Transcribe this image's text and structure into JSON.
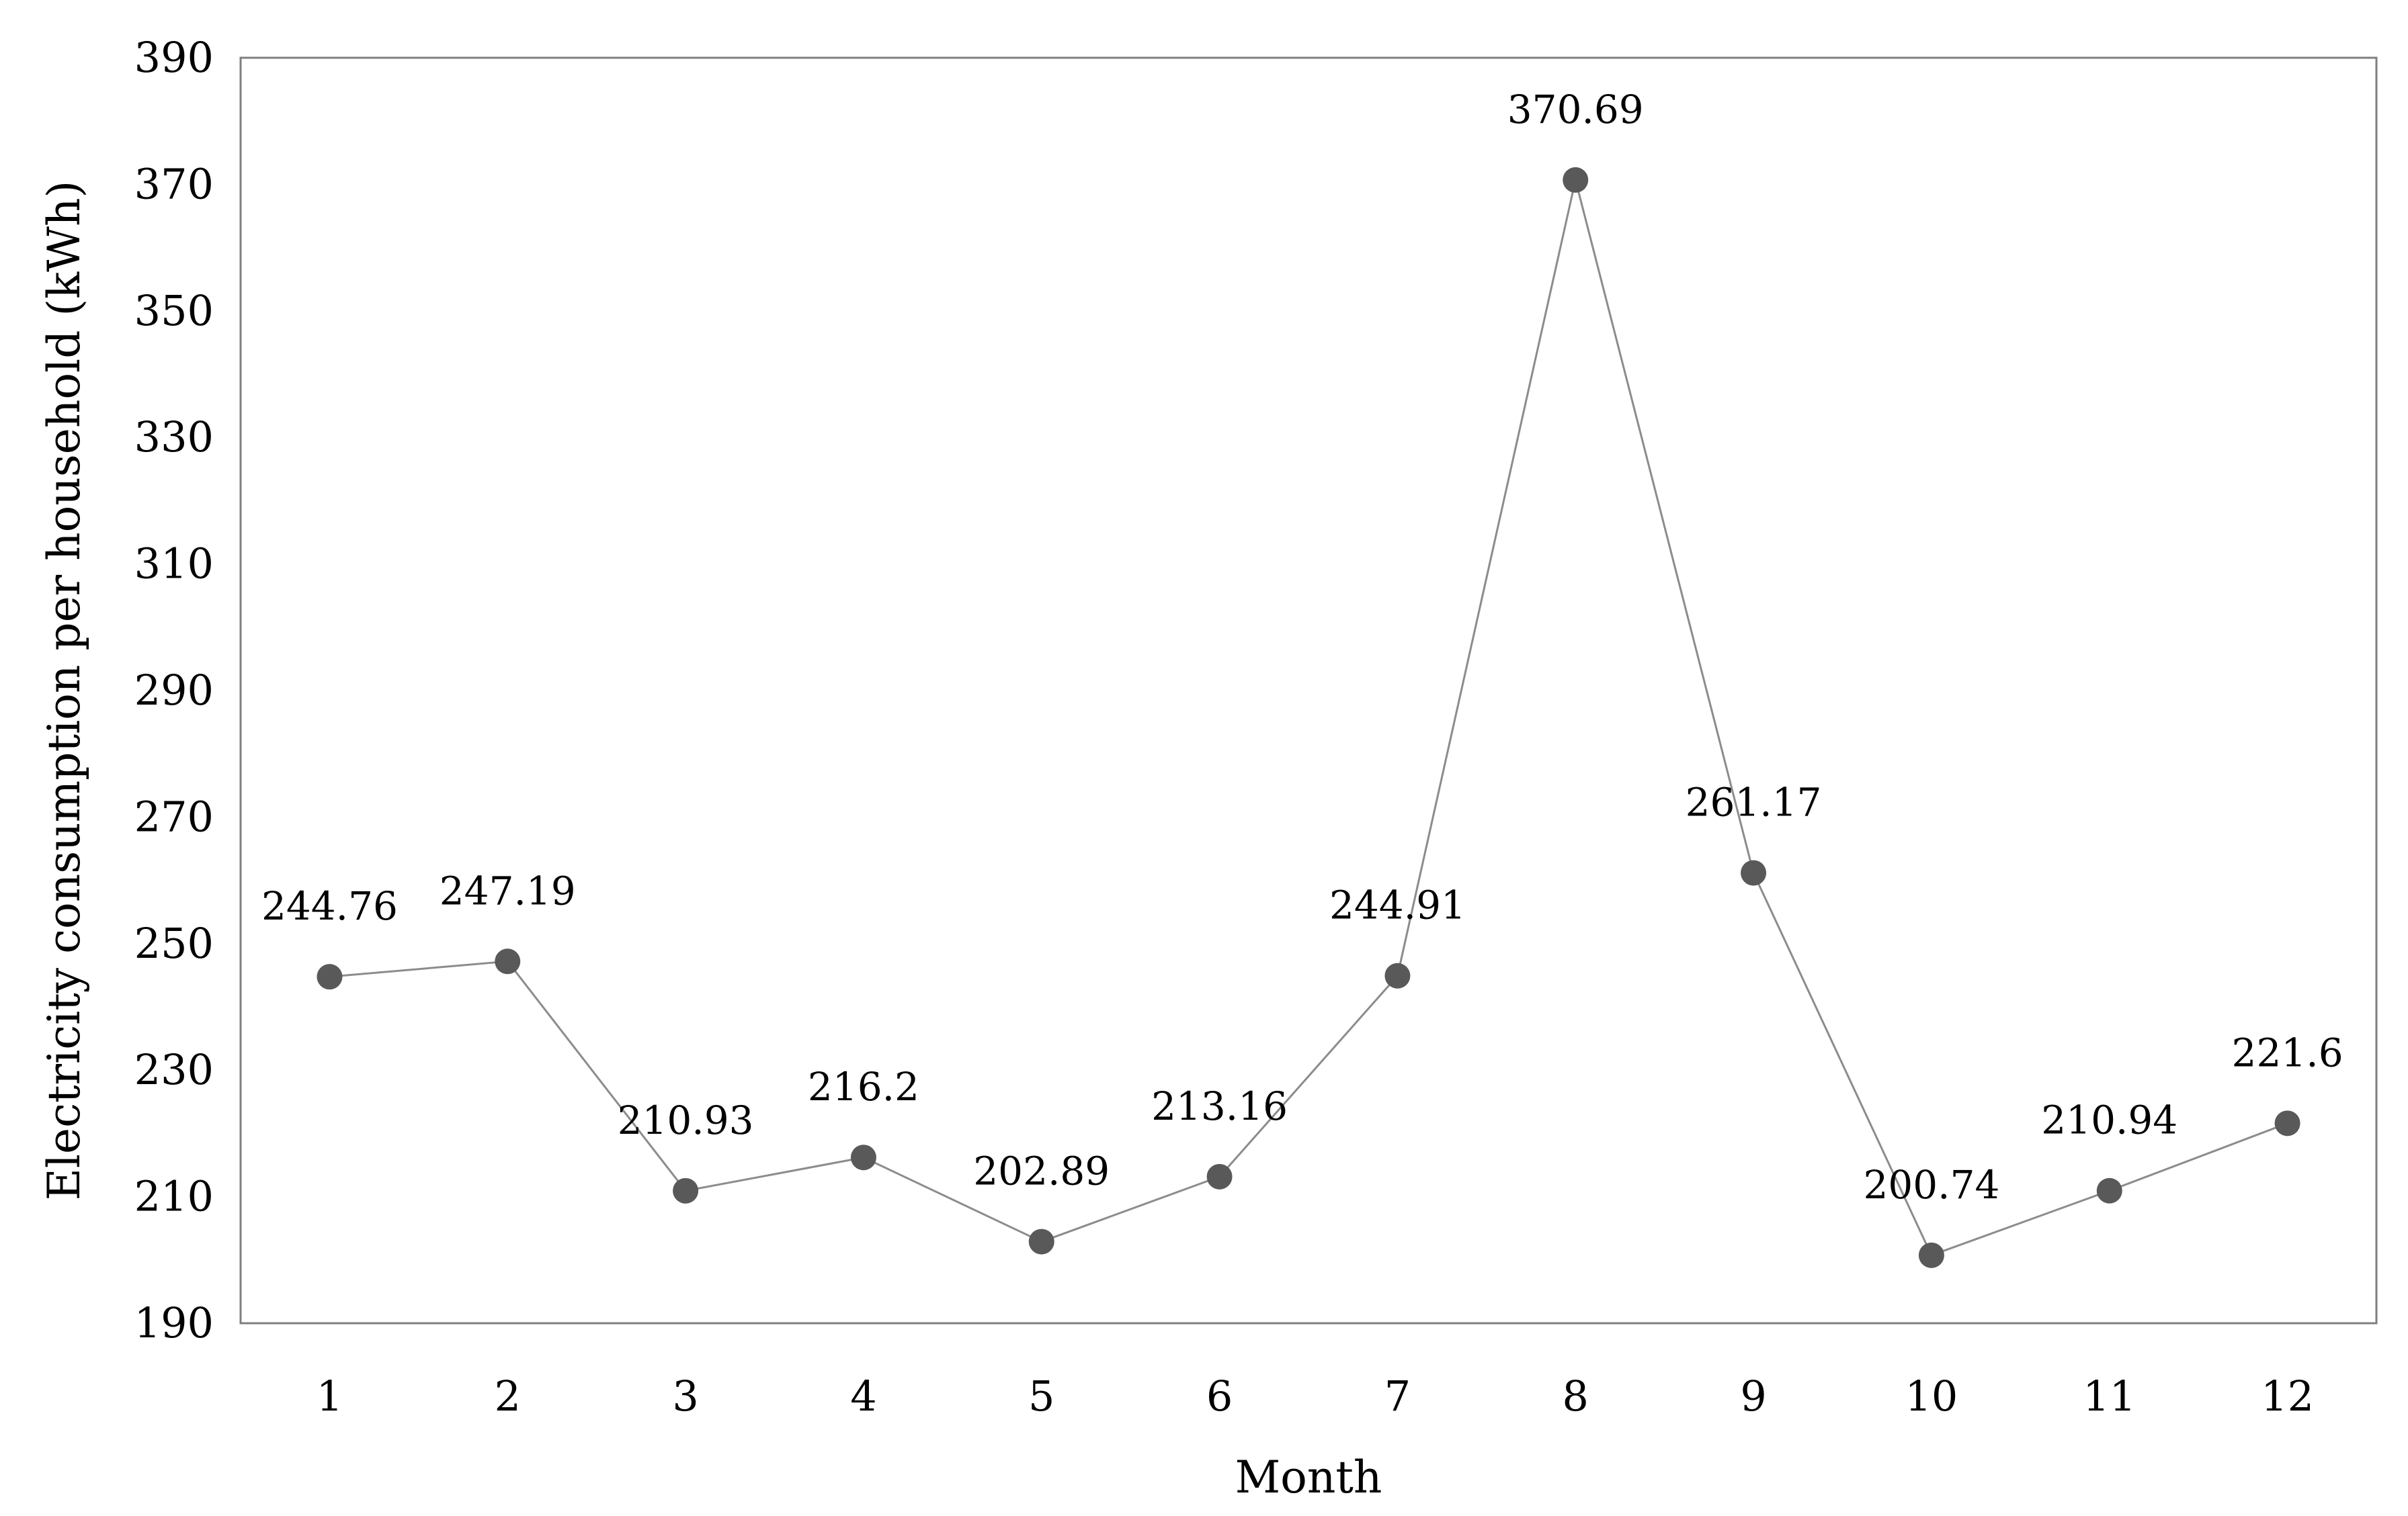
{
  "chart_data": {
    "type": "line",
    "categories": [
      "1",
      "2",
      "3",
      "4",
      "5",
      "6",
      "7",
      "8",
      "9",
      "10",
      "11",
      "12"
    ],
    "series": [
      {
        "values": [
          244.76,
          247.19,
          210.93,
          216.2,
          202.89,
          213.16,
          244.91,
          370.69,
          261.17,
          200.74,
          210.94,
          221.6
        ],
        "labels": [
          "244.76",
          "247.19",
          "210.93",
          "216.2",
          "202.89",
          "213.16",
          "244.91",
          "370.69",
          "261.17",
          "200.74",
          "210.94",
          "221.6"
        ]
      }
    ],
    "title": "",
    "xlabel": "Month",
    "ylabel": "Electricity consumption per household (kWh)",
    "ylim": [
      190,
      390
    ],
    "yticks": [
      "190",
      "210",
      "230",
      "250",
      "270",
      "290",
      "310",
      "330",
      "350",
      "370",
      "390"
    ],
    "grid": false,
    "legend": "none",
    "colors": {
      "line": "#8c8c8c",
      "marker": "#595959",
      "frame": "#7f7f7f",
      "text": "#000000"
    }
  }
}
